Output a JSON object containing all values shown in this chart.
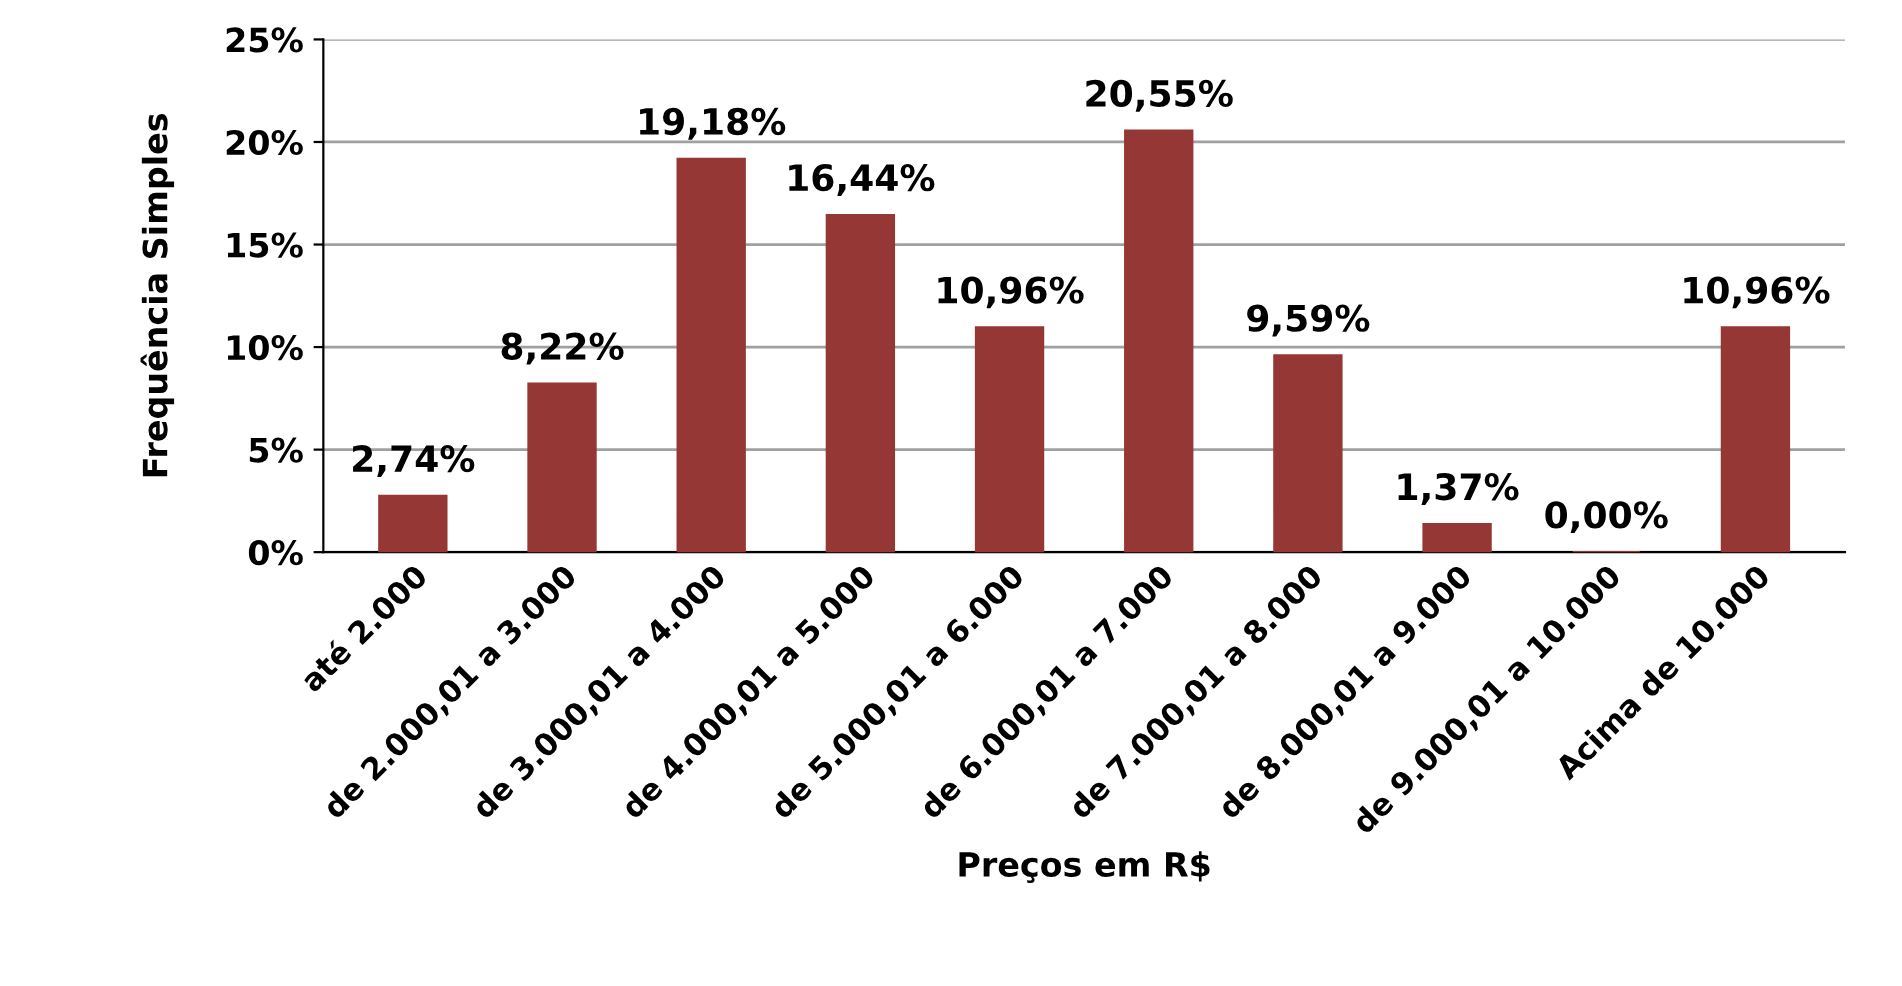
{
  "chart_data": {
    "type": "bar",
    "xlabel": "Preços em R$",
    "ylabel": "Frequência Simples",
    "categories": [
      "até 2.000",
      "de 2.000,01 a 3.000",
      "de 3.000,01 a 4.000",
      "de 4.000,01 a 5.000",
      "de 5.000,01 a 6.000",
      "de 6.000,01 a 7.000",
      "de 7.000,01 a 8.000",
      "de 8.000,01 a 9.000",
      "de 9.000,01 a 10.000",
      "Acima de 10.000"
    ],
    "values": [
      2.74,
      8.22,
      19.18,
      16.44,
      10.96,
      20.55,
      9.59,
      1.37,
      0.0,
      10.96
    ],
    "value_labels": [
      "2,74%",
      "8,22%",
      "19,18%",
      "16,44%",
      "10,96%",
      "20,55%",
      "9,59%",
      "1,37%",
      "0,00%",
      "10,96%"
    ],
    "color": "#953735",
    "ylim": [
      0,
      25
    ],
    "yticks": [
      {
        "value": 0,
        "label": "0%"
      },
      {
        "value": 5,
        "label": "5%"
      },
      {
        "value": 10,
        "label": "10%"
      },
      {
        "value": 15,
        "label": "15%"
      },
      {
        "value": 20,
        "label": "20%"
      },
      {
        "value": 25,
        "label": "25%"
      }
    ],
    "grid": "y",
    "legend": false
  }
}
